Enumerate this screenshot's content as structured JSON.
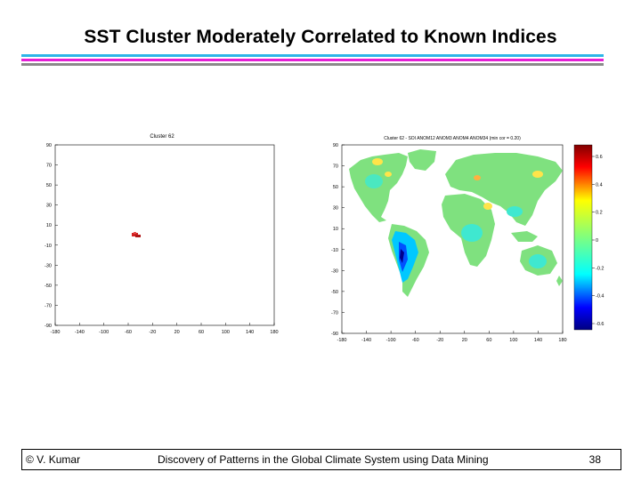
{
  "slide": {
    "title": "SST Cluster Moderately Correlated to Known Indices",
    "rule_colors": [
      "#2db5e8",
      "#e51fd6",
      "#8a8a8a"
    ]
  },
  "left_plot": {
    "title": "Cluster 62",
    "y_ticks": [
      "90",
      "70",
      "50",
      "30",
      "10",
      "-10",
      "-30",
      "-50",
      "-70",
      "-90"
    ],
    "x_ticks": [
      "-180",
      "-140",
      "-100",
      "-60",
      "-20",
      "20",
      "60",
      "100",
      "140",
      "180"
    ],
    "cluster_color": "#d42222"
  },
  "right_plot": {
    "title": "Cluster 62 - SOI ANOM12 ANOM3 ANOM4 ANOM34 (min cor = 0.20)",
    "y_ticks": [
      "90",
      "70",
      "50",
      "30",
      "10",
      "-10",
      "-30",
      "-50",
      "-70",
      "-90"
    ],
    "x_ticks": [
      "-180",
      "-140",
      "-100",
      "-60",
      "-20",
      "20",
      "60",
      "100",
      "140",
      "180"
    ],
    "colorbar_ticks": [
      "0.6",
      "0.4",
      "0.2",
      "0",
      "-0.2",
      "-0.4",
      "-0.6"
    ],
    "land_color": "#7fe17f"
  },
  "footer": {
    "author": "© V. Kumar",
    "subtitle": "Discovery of Patterns in the Global Climate System using Data Mining",
    "page_number": "38"
  }
}
